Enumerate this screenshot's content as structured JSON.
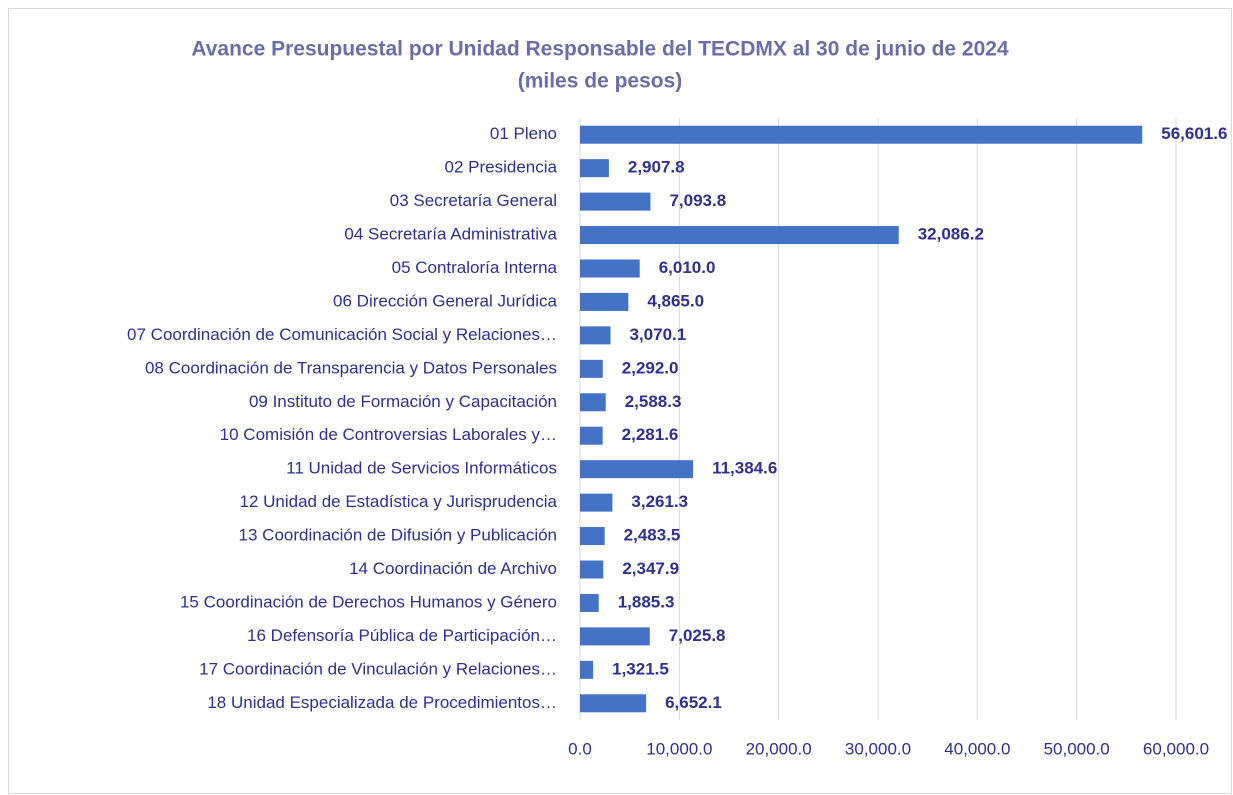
{
  "chart_data": {
    "type": "bar",
    "orientation": "horizontal",
    "title": "Avance Presupuestal por Unidad Responsable del TECDMX al 30 de junio de 2024",
    "subtitle": "(miles de pesos)",
    "categories": [
      "01 Pleno",
      "02 Presidencia",
      "03 Secretaría General",
      "04 Secretaría Administrativa",
      "05 Contraloría Interna",
      "06 Dirección General Jurídica",
      "07 Coordinación de Comunicación Social y Relaciones…",
      "08 Coordinación de Transparencia y Datos Personales",
      "09 Instituto de Formación y Capacitación",
      "10 Comisión de Controversias Laborales y…",
      "11 Unidad de Servicios Informáticos",
      "12 Unidad de Estadística y Jurisprudencia",
      "13 Coordinación de Difusión y Publicación",
      "14 Coordinación de Archivo",
      "15 Coordinación de Derechos Humanos y Género",
      "16 Defensoría Pública de Participación…",
      "17 Coordinación de Vinculación y Relaciones…",
      "18 Unidad Especializada de Procedimientos…"
    ],
    "values": [
      56601.6,
      2907.8,
      7093.8,
      32086.2,
      6010.0,
      4865.0,
      3070.1,
      2292.0,
      2588.3,
      2281.6,
      11384.6,
      3261.3,
      2483.5,
      2347.9,
      1885.3,
      7025.8,
      1321.5,
      6652.1
    ],
    "value_labels": [
      "56,601.6",
      "2,907.8",
      "7,093.8",
      "32,086.2",
      "6,010.0",
      "4,865.0",
      "3,070.1",
      "2,292.0",
      "2,588.3",
      "2,281.6",
      "11,384.6",
      "3,261.3",
      "2,483.5",
      "2,347.9",
      "1,885.3",
      "7,025.8",
      "1,321.5",
      "6,652.1"
    ],
    "color": "#4472c4",
    "xlim": [
      0,
      60000
    ],
    "xticks": [
      {
        "value": 0,
        "label": "0.0"
      },
      {
        "value": 10000,
        "label": "10,000.0"
      },
      {
        "value": 20000,
        "label": "20,000.0"
      },
      {
        "value": 30000,
        "label": "30,000.0"
      },
      {
        "value": 40000,
        "label": "40,000.0"
      },
      {
        "value": 50000,
        "label": "50,000.0"
      },
      {
        "value": 60000,
        "label": "60,000.0"
      }
    ],
    "grid": true
  }
}
